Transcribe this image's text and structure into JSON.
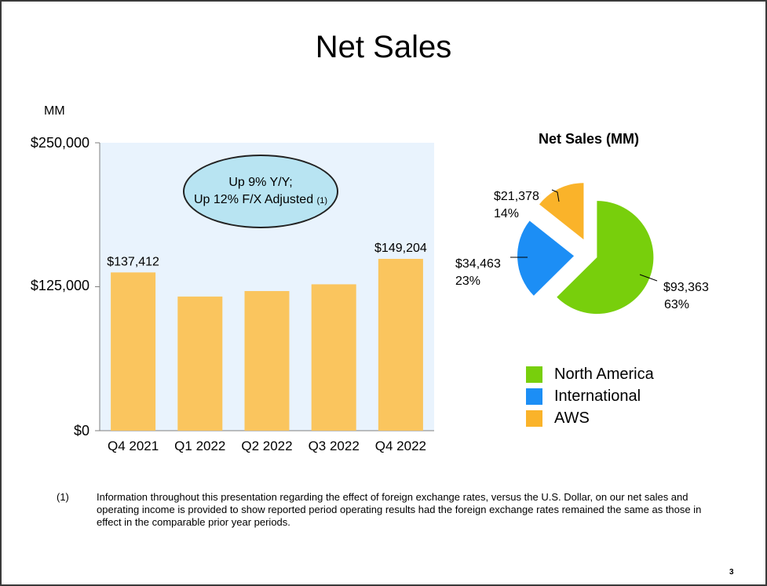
{
  "page": {
    "title": "Net Sales",
    "footnote_number": "(1)",
    "footnote_text": "Information throughout this presentation regarding the effect of foreign exchange rates, versus the U.S. Dollar, on our net sales and operating income is provided to show reported period operating results had the foreign exchange rates remained the same as those in effect in the comparable prior year periods.",
    "page_number": "3"
  },
  "chart_data": [
    {
      "type": "bar",
      "title": "",
      "unit_label": "MM",
      "ylabel": "",
      "xlabel": "",
      "ylim": [
        0,
        250000
      ],
      "y_tick_labels": [
        "$250,000",
        "$125,000",
        "$0"
      ],
      "y_ticks": [
        250000,
        125000,
        0
      ],
      "categories": [
        "Q4 2021",
        "Q1 2022",
        "Q2 2022",
        "Q3 2022",
        "Q4 2022"
      ],
      "values": [
        137412,
        116444,
        121234,
        127101,
        149204
      ],
      "data_labels": [
        "$137,412",
        "",
        "",
        "",
        "$149,204"
      ],
      "bar_color": "#fac55e",
      "plot_background": "#e9f3fd",
      "annotation": {
        "line1": "Up 9% Y/Y;",
        "line2": "Up 12% F/X Adjusted",
        "ref": "(1)"
      }
    },
    {
      "type": "pie",
      "title": "Net Sales (MM)",
      "slices": [
        {
          "name": "North America",
          "value": 93363,
          "label": "$93,363",
          "percent": "63%",
          "color": "#78cf0c"
        },
        {
          "name": "International",
          "value": 34463,
          "label": "$34,463",
          "percent": "23%",
          "color": "#1c8ef5"
        },
        {
          "name": "AWS",
          "value": 21378,
          "label": "$21,378",
          "percent": "14%",
          "color": "#fab32a"
        }
      ]
    }
  ]
}
